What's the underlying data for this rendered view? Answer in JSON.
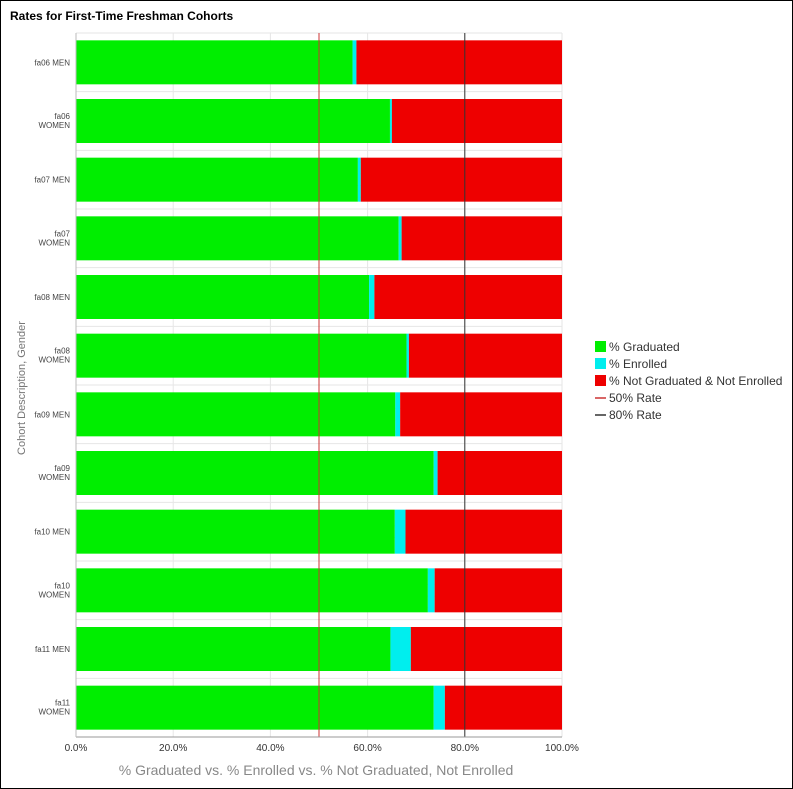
{
  "chart_data": {
    "type": "bar",
    "orientation": "horizontal",
    "stacked": true,
    "title": "Rates for First-Time Freshman Cohorts",
    "xlabel": "% Graduated vs. % Enrolled vs. % Not Graduated, Not Enrolled",
    "ylabel": "Cohort Description, Gender",
    "xlim": [
      0,
      100
    ],
    "x_ticks": [
      "0.0%",
      "20.0%",
      "40.0%",
      "60.0%",
      "80.0%",
      "100.0%"
    ],
    "categories": [
      [
        "fa06 MEN"
      ],
      [
        "fa06",
        "WOMEN"
      ],
      [
        "fa07 MEN"
      ],
      [
        "fa07",
        "WOMEN"
      ],
      [
        "fa08 MEN"
      ],
      [
        "fa08",
        "WOMEN"
      ],
      [
        "fa09 MEN"
      ],
      [
        "fa09",
        "WOMEN"
      ],
      [
        "fa10 MEN"
      ],
      [
        "fa10",
        "WOMEN"
      ],
      [
        "fa11 MEN"
      ],
      [
        "fa11",
        "WOMEN"
      ]
    ],
    "series": [
      {
        "name": "% Graduated",
        "color": "#00ee00",
        "values": [
          56.9,
          64.6,
          58.0,
          66.4,
          60.3,
          68.0,
          65.7,
          73.6,
          65.6,
          72.4,
          64.7,
          73.6
        ]
      },
      {
        "name": "% Enrolled",
        "color": "#00eeee",
        "values": [
          0.8,
          0.4,
          0.6,
          0.6,
          1.1,
          0.5,
          1.0,
          0.8,
          2.2,
          1.4,
          4.2,
          2.3
        ]
      },
      {
        "name": "% Not Graduated & Not Enrolled",
        "color": "#ee0000",
        "values": [
          42.3,
          35.0,
          41.4,
          33.0,
          38.6,
          31.5,
          33.3,
          25.6,
          32.2,
          26.2,
          31.1,
          24.1
        ]
      }
    ],
    "reference_lines": [
      {
        "name": "50% Rate",
        "value": 50,
        "color": "#cc3333"
      },
      {
        "name": "80% Rate",
        "value": 80,
        "color": "#333333"
      }
    ],
    "grid": true,
    "legend_position": "right"
  }
}
